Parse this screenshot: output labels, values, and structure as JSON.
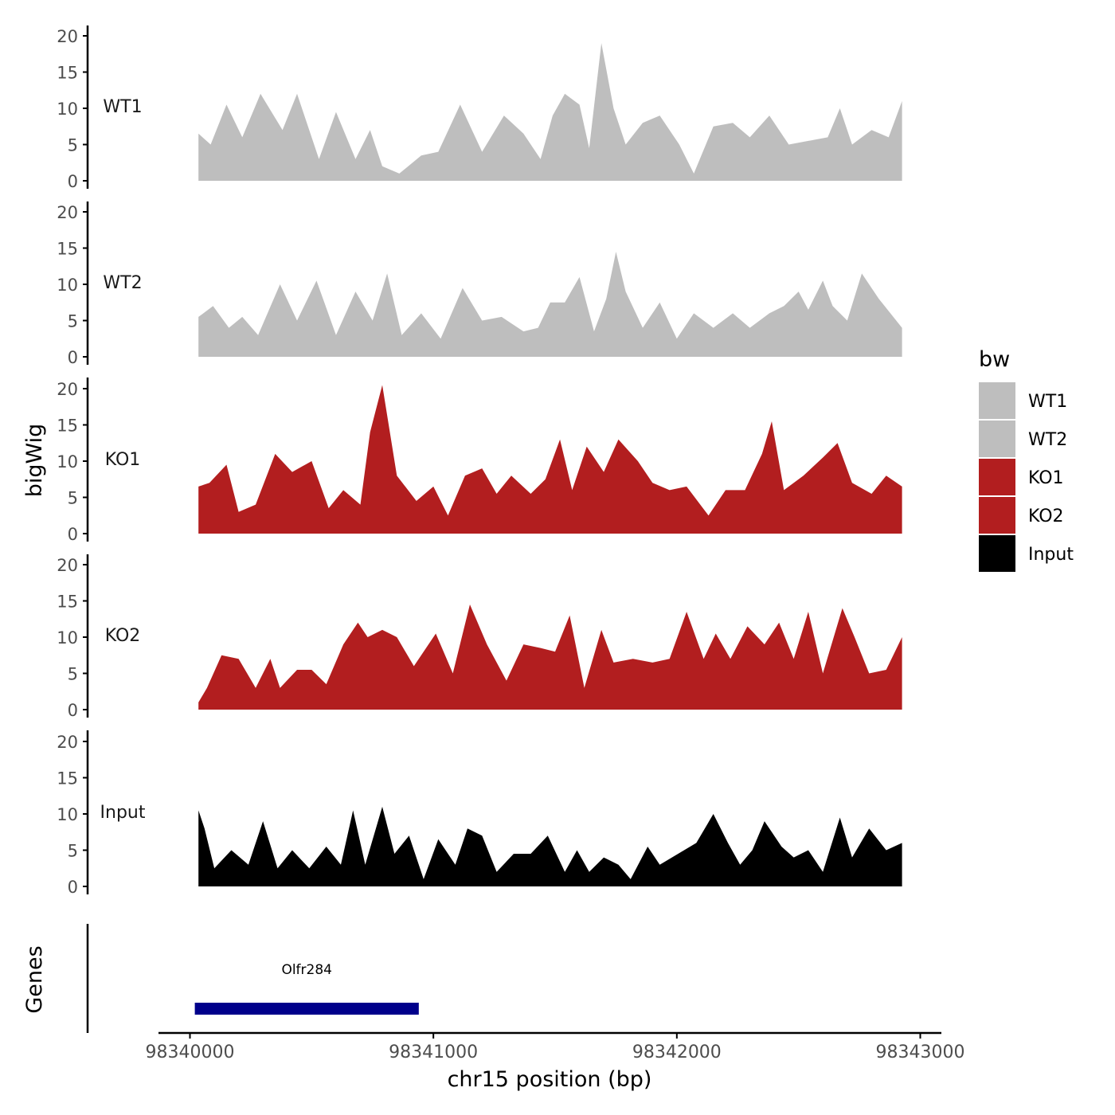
{
  "chart_data": {
    "type": "area",
    "x_axis": {
      "label": "chr15 position (bp)",
      "range": [
        98339870,
        98343090
      ],
      "ticks": [
        98340000,
        98341000,
        98342000,
        98343000
      ],
      "tick_labels": [
        "98340000",
        "98341000",
        "98342000",
        "98343000"
      ]
    },
    "y_axis": {
      "label": "bigWig",
      "range": [
        0,
        21
      ],
      "ticks": [
        0,
        5,
        10,
        15,
        20
      ],
      "tick_labels": [
        "0",
        "5",
        "10",
        "15",
        "20"
      ]
    },
    "legend": {
      "title": "bw",
      "position": "right",
      "entries": [
        {
          "label": "WT1",
          "color": "#bebebe"
        },
        {
          "label": "WT2",
          "color": "#bebebe"
        },
        {
          "label": "KO1",
          "color": "#b21e1f"
        },
        {
          "label": "KO2",
          "color": "#b21e1f"
        },
        {
          "label": "Input",
          "color": "#000000"
        }
      ]
    },
    "series": [
      {
        "name": "WT1",
        "color": "#bebebe",
        "x": [
          98340035,
          98340085,
          98340150,
          98340215,
          98340290,
          98340380,
          98340440,
          98340530,
          98340600,
          98340680,
          98340740,
          98340790,
          98340860,
          98340950,
          98341020,
          98341110,
          98341200,
          98341290,
          98341370,
          98341440,
          98341490,
          98341540,
          98341600,
          98341640,
          98341690,
          98341740,
          98341790,
          98341860,
          98341930,
          98342010,
          98342070,
          98342150,
          98342230,
          98342300,
          98342380,
          98342460,
          98342540,
          98342620,
          98342670,
          98342720,
          98342800,
          98342870,
          98342925
        ],
        "y": [
          6.5,
          5,
          10.5,
          6,
          12,
          7,
          12,
          3,
          9.5,
          3,
          7,
          2,
          1,
          3.5,
          4,
          10.5,
          4,
          9,
          6.5,
          3,
          9,
          12,
          10.5,
          4.5,
          19,
          10,
          5,
          8,
          9,
          5,
          1,
          7.5,
          8,
          6,
          9,
          5,
          5.5,
          6,
          10,
          5,
          7,
          6,
          11
        ]
      },
      {
        "name": "WT2",
        "color": "#bebebe",
        "x": [
          98340035,
          98340095,
          98340160,
          98340215,
          98340280,
          98340370,
          98340440,
          98340520,
          98340600,
          98340680,
          98340750,
          98340810,
          98340870,
          98340950,
          98341030,
          98341120,
          98341200,
          98341280,
          98341370,
          98341430,
          98341480,
          98341540,
          98341600,
          98341660,
          98341710,
          98341750,
          98341790,
          98341860,
          98341930,
          98342000,
          98342070,
          98342150,
          98342230,
          98342300,
          98342380,
          98342440,
          98342500,
          98342540,
          98342600,
          98342640,
          98342700,
          98342760,
          98342830,
          98342925
        ],
        "y": [
          5.5,
          7,
          4,
          5.5,
          3,
          10,
          5,
          10.5,
          3,
          9,
          5,
          11.5,
          3,
          6,
          2.5,
          9.5,
          5,
          5.5,
          3.5,
          4,
          7.5,
          7.5,
          11,
          3.5,
          8,
          14.5,
          9,
          4,
          7.5,
          2.5,
          6,
          4,
          6,
          4,
          6,
          7,
          9,
          6.5,
          10.5,
          7,
          5,
          11.5,
          8,
          4
        ]
      },
      {
        "name": "KO1",
        "color": "#b21e1f",
        "x": [
          98340035,
          98340080,
          98340150,
          98340200,
          98340270,
          98340350,
          98340420,
          98340500,
          98340570,
          98340630,
          98340700,
          98340740,
          98340790,
          98340850,
          98340930,
          98341000,
          98341060,
          98341130,
          98341200,
          98341260,
          98341320,
          98341400,
          98341460,
          98341520,
          98341570,
          98341630,
          98341700,
          98341760,
          98341840,
          98341900,
          98341970,
          98342040,
          98342130,
          98342200,
          98342280,
          98342350,
          98342390,
          98342440,
          98342520,
          98342600,
          98342660,
          98342720,
          98342800,
          98342860,
          98342925
        ],
        "y": [
          6.5,
          7,
          9.5,
          3,
          4,
          11,
          8.5,
          10,
          3.5,
          6,
          4,
          14,
          20.5,
          8,
          4.5,
          6.5,
          2.5,
          8,
          9,
          5.5,
          8,
          5.5,
          7.5,
          13,
          6,
          12,
          8.5,
          13,
          10,
          7,
          6,
          6.5,
          2.5,
          6,
          6,
          11,
          15.5,
          6,
          8,
          10.5,
          12.5,
          7,
          5.5,
          8,
          6.5
        ]
      },
      {
        "name": "KO2",
        "color": "#b21e1f",
        "x": [
          98340035,
          98340070,
          98340130,
          98340200,
          98340270,
          98340330,
          98340370,
          98340440,
          98340500,
          98340560,
          98340630,
          98340690,
          98340730,
          98340790,
          98340850,
          98340920,
          98341010,
          98341080,
          98341150,
          98341220,
          98341300,
          98341370,
          98341440,
          98341500,
          98341560,
          98341620,
          98341690,
          98341740,
          98341820,
          98341900,
          98341970,
          98342040,
          98342110,
          98342160,
          98342220,
          98342290,
          98342360,
          98342420,
          98342480,
          98342540,
          98342600,
          98342680,
          98342730,
          98342790,
          98342860,
          98342925
        ],
        "y": [
          1,
          3,
          7.5,
          7,
          3,
          7,
          3,
          5.5,
          5.5,
          3.5,
          9,
          12,
          10,
          11,
          10,
          6,
          10.5,
          5,
          14.5,
          9,
          4,
          9,
          8.5,
          8,
          13,
          3,
          11,
          6.5,
          7,
          6.5,
          7,
          13.5,
          7,
          10.5,
          7,
          11.5,
          9,
          12,
          7,
          13.5,
          5,
          14,
          10,
          5,
          5.5,
          10
        ]
      },
      {
        "name": "Input",
        "color": "#000000",
        "x": [
          98340035,
          98340060,
          98340100,
          98340170,
          98340240,
          98340300,
          98340360,
          98340420,
          98340490,
          98340560,
          98340620,
          98340670,
          98340720,
          98340790,
          98340840,
          98340900,
          98340960,
          98341020,
          98341090,
          98341140,
          98341200,
          98341260,
          98341330,
          98341400,
          98341470,
          98341540,
          98341590,
          98341640,
          98341700,
          98341760,
          98341810,
          98341880,
          98341930,
          98341980,
          98342030,
          98342080,
          98342150,
          98342210,
          98342260,
          98342310,
          98342360,
          98342430,
          98342480,
          98342540,
          98342600,
          98342670,
          98342720,
          98342790,
          98342860,
          98342925
        ],
        "y": [
          10.5,
          8,
          2.5,
          5,
          3,
          9,
          2.5,
          5,
          2.5,
          5.5,
          3,
          10.5,
          3,
          11,
          4.5,
          7,
          1,
          6.5,
          3,
          8,
          7,
          2,
          4.5,
          4.5,
          7,
          2,
          5,
          2,
          4,
          3,
          1,
          5.5,
          3,
          4,
          5,
          6,
          10,
          6,
          3,
          5,
          9,
          5.5,
          4,
          5,
          2,
          9.5,
          4,
          8,
          5,
          6
        ]
      }
    ],
    "genes_track": {
      "label": "Genes",
      "genes": [
        {
          "name": "Olfr284",
          "start": 98340020,
          "end": 98340940,
          "color": "#00008b"
        }
      ]
    }
  }
}
